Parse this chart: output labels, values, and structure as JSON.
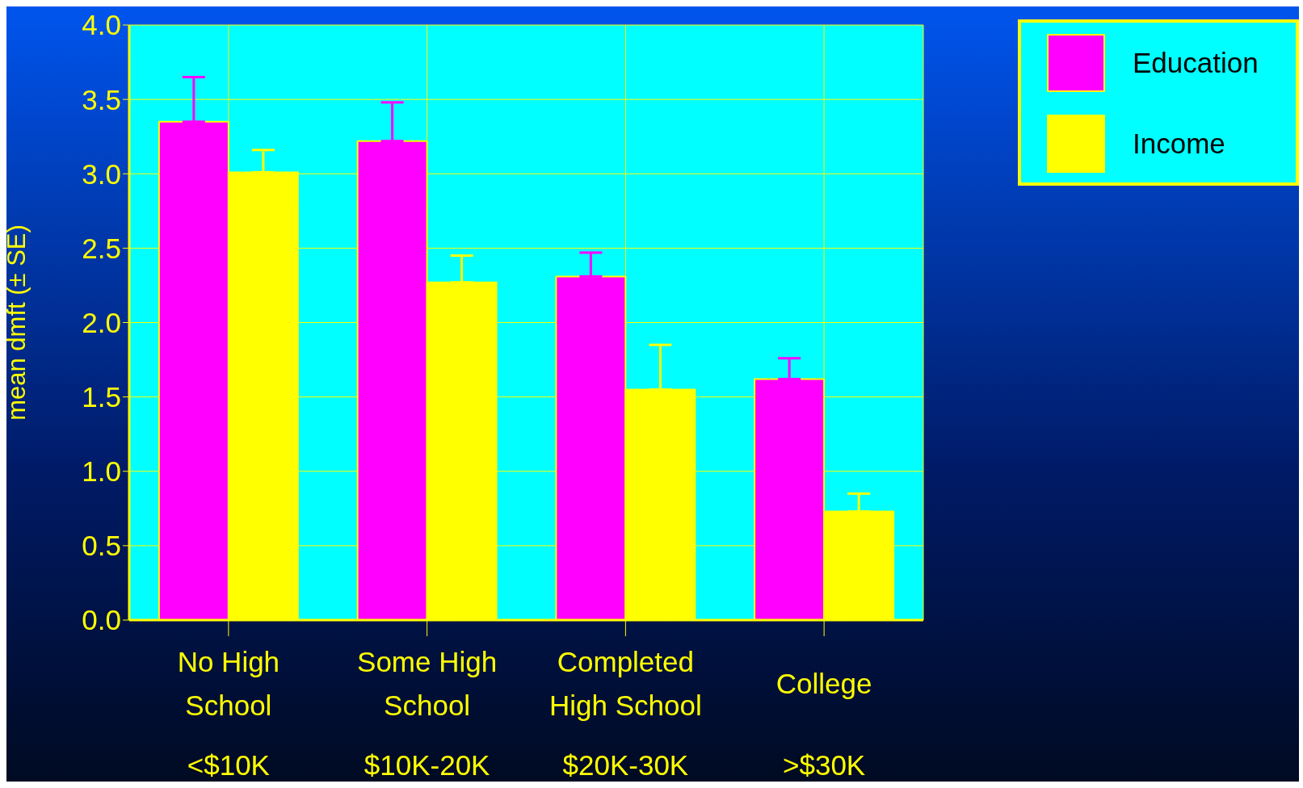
{
  "chart_data": {
    "type": "bar",
    "ylabel": "mean dmft (± SE)",
    "categories": [
      "No High\nSchool\n<$10K",
      "Some High\nSchool\n$10K-20K",
      "Completed\nHigh School\n$20K-30K",
      "College\n>$30K"
    ],
    "series": [
      {
        "name": "Education",
        "color": "#ff00ff",
        "values": [
          3.35,
          3.22,
          2.31,
          1.62
        ],
        "errors": [
          [
            3.35,
            3.65
          ],
          [
            3.22,
            3.48
          ],
          [
            2.31,
            2.47
          ],
          [
            1.62,
            1.76
          ]
        ]
      },
      {
        "name": "Income",
        "color": "#ffff00",
        "values": [
          3.01,
          2.27,
          1.55,
          0.73
        ],
        "errors": [
          [
            3.01,
            3.16
          ],
          [
            2.27,
            2.45
          ],
          [
            1.55,
            1.85
          ],
          [
            0.73,
            0.85
          ]
        ]
      }
    ],
    "ylim": [
      0,
      4
    ],
    "yticks": [
      {
        "value": 0,
        "label": "0.0"
      },
      {
        "value": 0.5,
        "label": "0.5"
      },
      {
        "value": 1,
        "label": "1.0"
      },
      {
        "value": 1.5,
        "label": "1.5"
      },
      {
        "value": 2,
        "label": "2.0"
      },
      {
        "value": 2.5,
        "label": "2.5"
      },
      {
        "value": 3,
        "label": "3.0"
      },
      {
        "value": 3.5,
        "label": "3.5"
      },
      {
        "value": 4,
        "label": "4.0"
      }
    ],
    "grid": true,
    "legend": "top right"
  }
}
